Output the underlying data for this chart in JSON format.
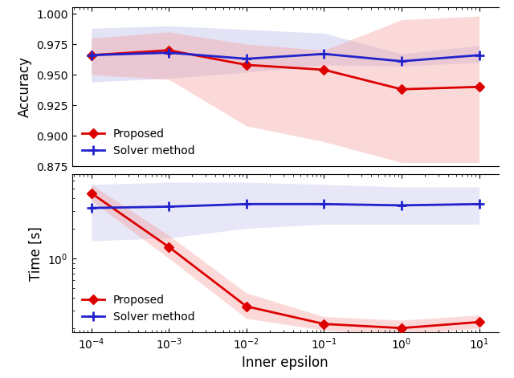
{
  "x_values": [
    0.0001,
    0.001,
    0.01,
    0.1,
    1.0,
    10.0
  ],
  "acc_proposed_mean": [
    0.966,
    0.97,
    0.958,
    0.954,
    0.938,
    0.94
  ],
  "acc_proposed_lower": [
    0.95,
    0.946,
    0.908,
    0.895,
    0.878,
    0.878
  ],
  "acc_proposed_upper": [
    0.98,
    0.985,
    0.975,
    0.97,
    0.995,
    0.998
  ],
  "acc_solver_mean": [
    0.966,
    0.968,
    0.963,
    0.967,
    0.961,
    0.966
  ],
  "acc_solver_lower": [
    0.944,
    0.947,
    0.952,
    0.958,
    0.957,
    0.96
  ],
  "acc_solver_upper": [
    0.988,
    0.99,
    0.987,
    0.984,
    0.967,
    0.974
  ],
  "time_proposed_mean": [
    4.5,
    1.3,
    0.33,
    0.22,
    0.2,
    0.23
  ],
  "time_proposed_lower": [
    3.8,
    1.0,
    0.25,
    0.19,
    0.17,
    0.2
  ],
  "time_proposed_upper": [
    5.5,
    1.7,
    0.45,
    0.26,
    0.24,
    0.27
  ],
  "time_solver_mean": [
    3.2,
    3.3,
    3.5,
    3.5,
    3.4,
    3.5
  ],
  "time_solver_lower": [
    1.5,
    1.6,
    2.0,
    2.2,
    2.2,
    2.2
  ],
  "time_solver_upper": [
    5.5,
    5.8,
    5.8,
    5.5,
    5.2,
    5.2
  ],
  "red_color": "#dd0000",
  "blue_color": "#2222cc",
  "red_fill": "#f5a0a0",
  "blue_fill": "#b0b0e8",
  "acc_ylim": [
    0.875,
    1.005
  ],
  "acc_yticks": [
    0.875,
    0.9,
    0.925,
    0.95,
    0.975,
    1.0
  ],
  "time_ylim_log": [
    0.18,
    7.0
  ],
  "xlabel": "Inner epsilon",
  "acc_ylabel": "Accuracy",
  "time_ylabel": "Time [s]"
}
